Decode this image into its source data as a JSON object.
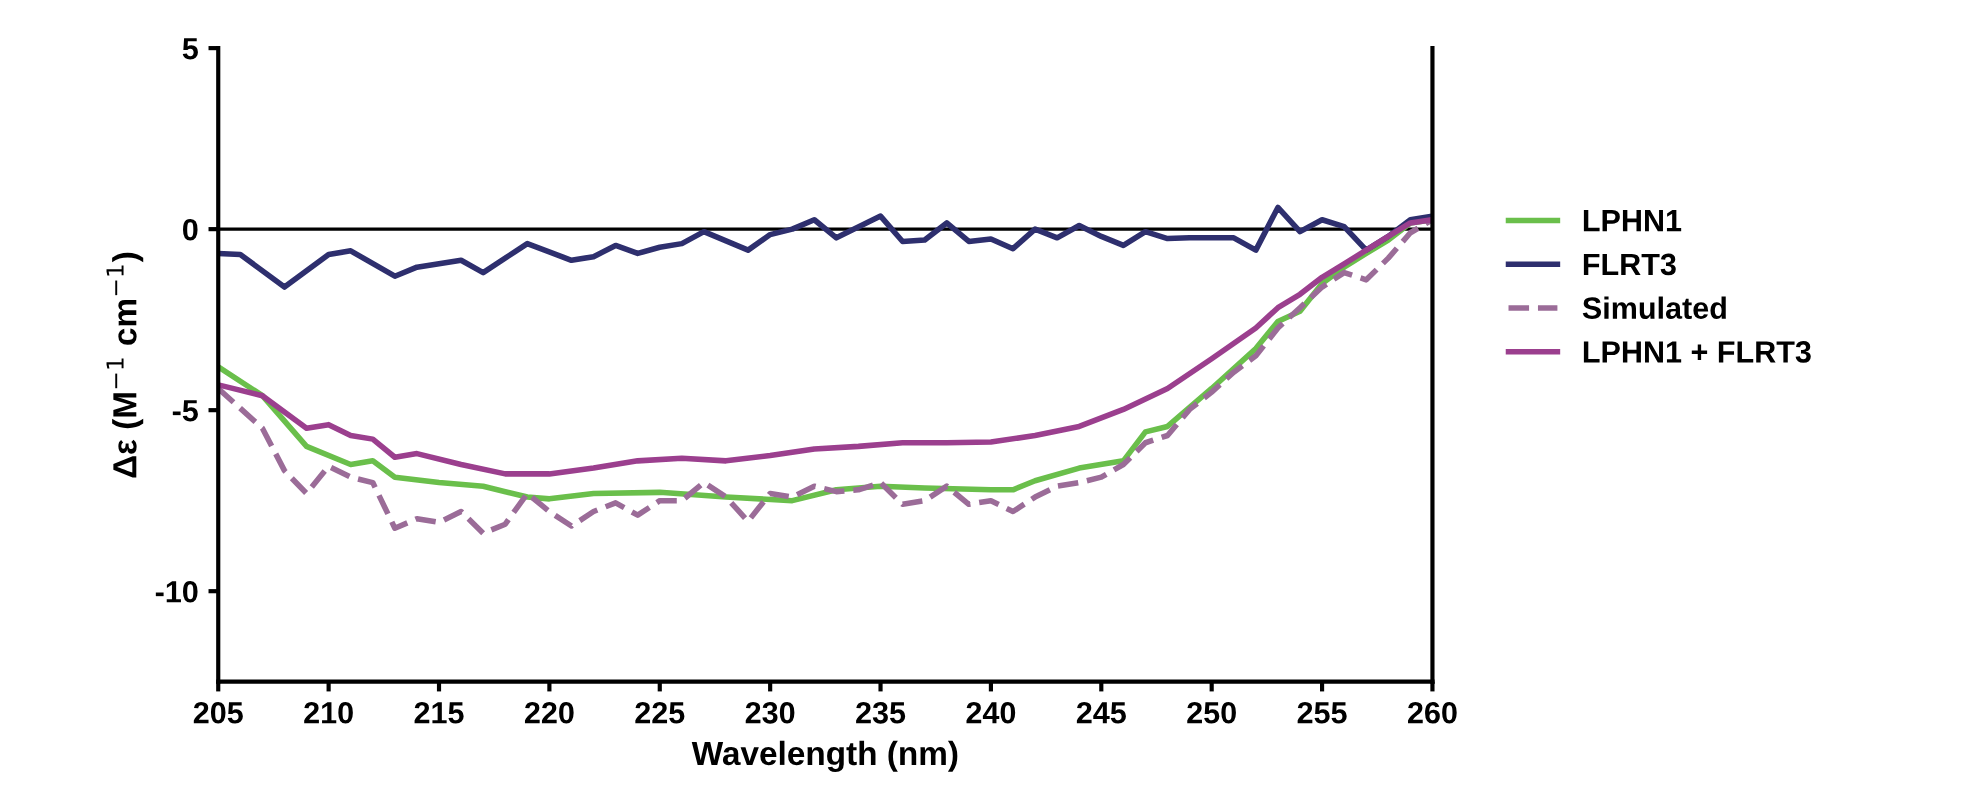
{
  "chart_data": {
    "type": "line",
    "xlabel": "Wavelength (nm)",
    "ylabel": "Δε (M$^{−1}$ cm$^{−1}$)",
    "xlim": [
      205,
      260
    ],
    "xticks": [
      205,
      210,
      215,
      220,
      225,
      230,
      235,
      240,
      245,
      250,
      255,
      260
    ],
    "ylim": [
      -12.5,
      5
    ],
    "yticks": [
      -10,
      -5,
      0,
      5
    ],
    "grid": false,
    "legend": "right",
    "marker": "none",
    "ref_lines": [
      {
        "axis": "y",
        "value": 0,
        "color": "#000000",
        "line_style": "solid"
      }
    ],
    "series": [
      {
        "name": "LPHN1",
        "color": "#6abf4b",
        "line_style": "solid",
        "x": [
          205,
          207,
          209,
          211,
          212,
          213,
          215,
          217,
          219,
          220,
          222,
          225,
          228,
          231,
          233,
          235,
          237,
          240,
          241,
          242,
          244,
          246,
          247,
          248,
          250,
          252,
          253,
          254,
          255,
          256,
          257,
          258,
          259,
          260
        ],
        "values": [
          -3.8,
          -4.6,
          -6.0,
          -6.5,
          -6.4,
          -6.85,
          -7.0,
          -7.1,
          -7.4,
          -7.45,
          -7.3,
          -7.27,
          -7.4,
          -7.5,
          -7.2,
          -7.1,
          -7.15,
          -7.2,
          -7.2,
          -6.95,
          -6.6,
          -6.4,
          -5.6,
          -5.45,
          -4.4,
          -3.3,
          -2.55,
          -2.27,
          -1.5,
          -1.05,
          -0.67,
          -0.3,
          0.17,
          0.26
        ]
      },
      {
        "name": "FLRT3",
        "color": "#2e2f6e",
        "line_style": "solid",
        "x": [
          205,
          206,
          208,
          210,
          211,
          213,
          214,
          216,
          217,
          219,
          221,
          222,
          223,
          224,
          225,
          226,
          227,
          229,
          230,
          231,
          232,
          233,
          235,
          236,
          237,
          238,
          239,
          240,
          241,
          242,
          243,
          244,
          245,
          246,
          247,
          248,
          249,
          250,
          251,
          252,
          253,
          254,
          255,
          256,
          257,
          258,
          259,
          260
        ],
        "values": [
          -0.67,
          -0.7,
          -1.6,
          -0.7,
          -0.6,
          -1.3,
          -1.05,
          -0.86,
          -1.2,
          -0.4,
          -0.86,
          -0.76,
          -0.45,
          -0.67,
          -0.5,
          -0.4,
          -0.07,
          -0.58,
          -0.15,
          0,
          0.26,
          -0.24,
          0.36,
          -0.34,
          -0.3,
          0.17,
          -0.34,
          -0.27,
          -0.54,
          0,
          -0.24,
          0.1,
          -0.2,
          -0.45,
          -0.07,
          -0.26,
          -0.24,
          -0.24,
          -0.24,
          -0.58,
          0.6,
          -0.07,
          0.26,
          0.07,
          -0.58,
          -0.2,
          0.26,
          0.36
        ]
      },
      {
        "name": "Simulated",
        "color": "#9b6c98",
        "line_style": "dashed",
        "x": [
          205,
          207,
          208,
          209,
          210,
          211,
          212,
          213,
          214,
          215,
          216,
          217,
          218,
          219,
          220,
          221,
          222,
          223,
          224,
          225,
          226,
          227,
          228,
          229,
          230,
          231,
          232,
          233,
          234,
          235,
          236,
          237,
          238,
          239,
          240,
          241,
          242,
          243,
          244,
          245,
          246,
          247,
          248,
          249,
          250,
          251,
          252,
          253,
          254,
          255,
          256,
          257,
          258,
          259,
          260
        ],
        "values": [
          -4.4,
          -5.5,
          -6.67,
          -7.3,
          -6.55,
          -6.85,
          -7.0,
          -8.26,
          -8.0,
          -8.1,
          -7.8,
          -8.4,
          -8.15,
          -7.3,
          -7.8,
          -8.2,
          -7.8,
          -7.56,
          -7.9,
          -7.5,
          -7.5,
          -7.0,
          -7.4,
          -8.07,
          -7.3,
          -7.4,
          -7.1,
          -7.25,
          -7.2,
          -7.0,
          -7.6,
          -7.5,
          -7.1,
          -7.6,
          -7.5,
          -7.8,
          -7.4,
          -7.1,
          -7.0,
          -6.85,
          -6.5,
          -5.9,
          -5.7,
          -4.98,
          -4.5,
          -3.95,
          -3.5,
          -2.73,
          -2.17,
          -1.6,
          -1.2,
          -1.4,
          -0.8,
          -0.1,
          0.26
        ]
      },
      {
        "name": "LPHN1 + FLRT3",
        "color": "#9b3f8e",
        "line_style": "solid",
        "x": [
          205,
          207,
          209,
          210,
          211,
          212,
          213,
          214,
          216,
          218,
          220,
          222,
          224,
          226,
          228,
          230,
          232,
          234,
          236,
          238,
          240,
          242,
          244,
          246,
          248,
          250,
          252,
          253,
          254,
          255,
          256,
          257,
          258,
          259,
          260
        ],
        "values": [
          -4.3,
          -4.6,
          -5.5,
          -5.4,
          -5.7,
          -5.8,
          -6.3,
          -6.2,
          -6.5,
          -6.76,
          -6.76,
          -6.6,
          -6.4,
          -6.33,
          -6.4,
          -6.25,
          -6.07,
          -6.0,
          -5.9,
          -5.9,
          -5.88,
          -5.7,
          -5.45,
          -4.98,
          -4.4,
          -3.58,
          -2.73,
          -2.17,
          -1.8,
          -1.33,
          -0.96,
          -0.58,
          -0.2,
          0.17,
          0.26
        ]
      }
    ]
  }
}
